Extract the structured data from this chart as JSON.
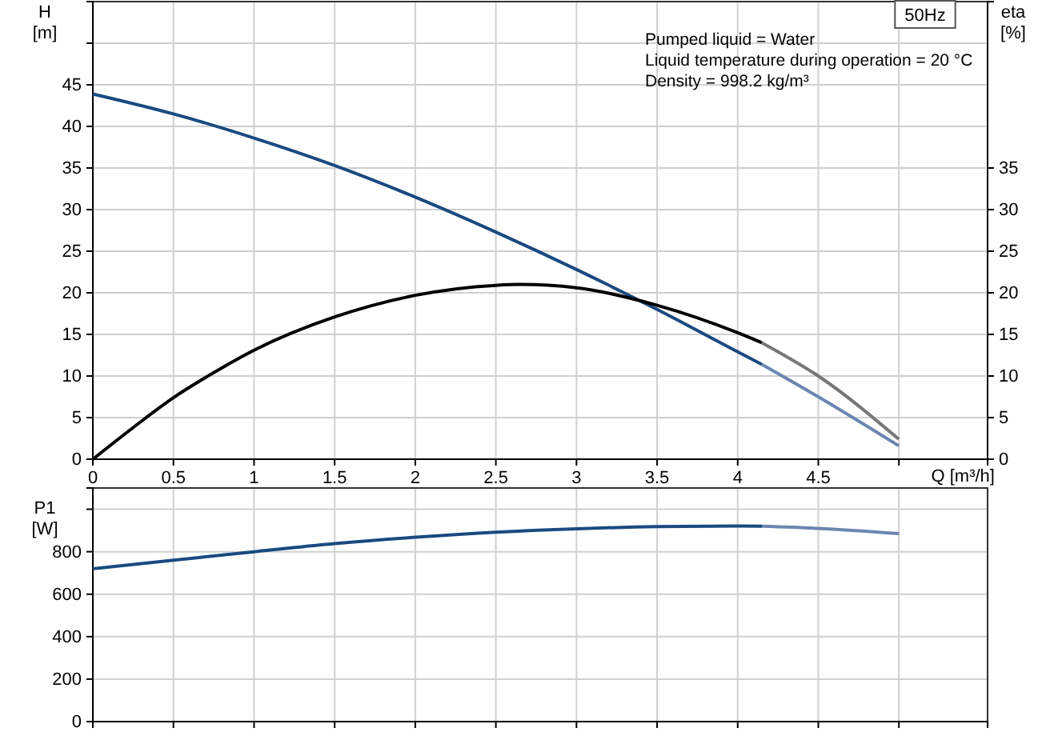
{
  "chart_data": [
    {
      "type": "line",
      "title": "50Hz",
      "xlabel": "Q [m³/h]",
      "ylabel": "H [m]",
      "y2label": "eta [%]",
      "annotations": [
        "Pumped liquid = Water",
        "Liquid temperature during operation = 20 °C",
        "Density = 998.2 kg/m³"
      ],
      "xlim": [
        0,
        5.55
      ],
      "xticks": [
        0,
        0.5,
        1.0,
        1.5,
        2.0,
        2.5,
        3.0,
        3.5,
        4.0,
        4.5,
        {
          "value": 5,
          "label": null
        }
      ],
      "ylim": [
        0,
        55
      ],
      "yticks": [
        0,
        5,
        10,
        15,
        20,
        25,
        30,
        35,
        40,
        45,
        {
          "value": 50,
          "label": null
        }
      ],
      "y2lim": [
        0,
        55
      ],
      "y2ticks": [
        0,
        5,
        10,
        15,
        20,
        25,
        30,
        35
      ],
      "grid": true,
      "marker": "none",
      "line_style": "solid",
      "series": [
        {
          "color": "#1a4a80",
          "x": [
            0,
            0.5,
            1.0,
            1.5,
            2.0,
            2.5,
            3.0,
            3.5,
            4.0,
            4.15
          ],
          "values": [
            43.9,
            41.5,
            38.6,
            35.3,
            31.5,
            27.3,
            22.8,
            18.0,
            12.9,
            11.4
          ]
        },
        {
          "color": "#6b86b0",
          "x": [
            4.15,
            4.5,
            5.0
          ],
          "values": [
            11.4,
            7.5,
            1.6
          ]
        },
        {
          "color": "#000000",
          "x": [
            0,
            0.25,
            0.5,
            0.75,
            1.0,
            1.5,
            2.0,
            2.5,
            2.65,
            3.0,
            3.5,
            4.0,
            4.15
          ],
          "values": [
            0,
            3.8,
            7.4,
            10.4,
            13.1,
            17.1,
            19.7,
            20.9,
            21.0,
            20.6,
            18.5,
            15.2,
            14.0
          ]
        },
        {
          "color": "#777777",
          "x": [
            4.15,
            4.5,
            5.0
          ],
          "values": [
            14.0,
            10.0,
            2.4
          ]
        }
      ]
    },
    {
      "type": "line",
      "ylabel": "P1 [W]",
      "tick_labels": "y",
      "xlim": [
        0,
        5.55
      ],
      "xticks": [
        0,
        0.5,
        1.0,
        1.5,
        2.0,
        2.5,
        3.0,
        3.5,
        4.0,
        4.5,
        5.0
      ],
      "ylim": [
        0,
        1100
      ],
      "yticks": [
        0,
        200,
        400,
        600,
        800,
        {
          "value": 1000,
          "label": null
        }
      ],
      "grid": true,
      "marker": "none",
      "line_style": "solid",
      "series": [
        {
          "color": "#1a4a80",
          "x": [
            0,
            0.5,
            1.0,
            1.5,
            2.0,
            2.5,
            3.0,
            3.5,
            4.0,
            4.15
          ],
          "values": [
            720,
            760,
            800,
            838,
            868,
            892,
            908,
            918,
            921,
            920
          ]
        },
        {
          "color": "#6b86b0",
          "x": [
            4.15,
            4.5,
            5.0
          ],
          "values": [
            920,
            910,
            885
          ]
        }
      ]
    }
  ]
}
